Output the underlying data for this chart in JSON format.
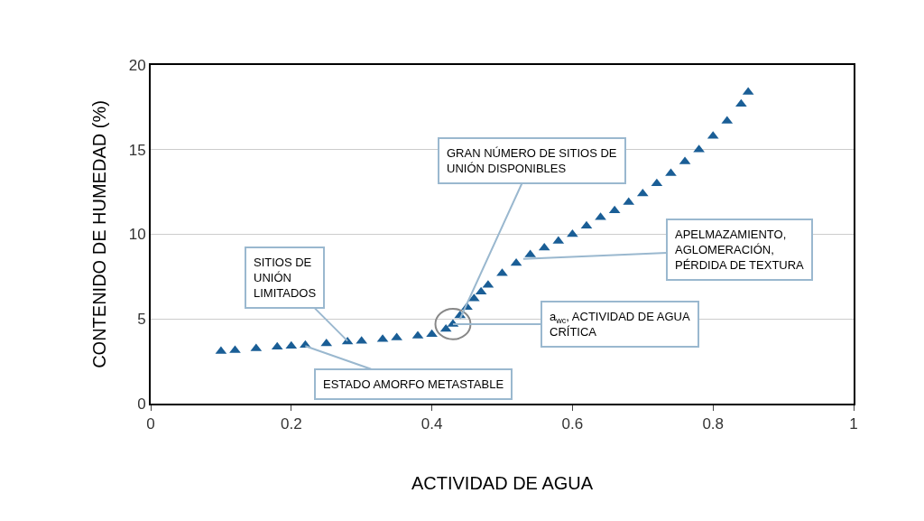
{
  "chart_data": {
    "type": "scatter",
    "xlabel": "ACTIVIDAD DE AGUA",
    "ylabel": "CONTENIDO DE HUMEDAD (%)",
    "x": [
      0.1,
      0.12,
      0.15,
      0.18,
      0.2,
      0.22,
      0.25,
      0.28,
      0.3,
      0.33,
      0.35,
      0.38,
      0.4,
      0.42,
      0.43,
      0.44,
      0.45,
      0.46,
      0.47,
      0.48,
      0.5,
      0.52,
      0.54,
      0.56,
      0.58,
      0.6,
      0.62,
      0.64,
      0.66,
      0.68,
      0.7,
      0.72,
      0.74,
      0.76,
      0.78,
      0.8,
      0.82,
      0.84,
      0.85
    ],
    "series": [
      {
        "color": "#1a5e96",
        "values": [
          3.1,
          3.15,
          3.25,
          3.35,
          3.4,
          3.45,
          3.55,
          3.65,
          3.7,
          3.8,
          3.9,
          4.0,
          4.1,
          4.4,
          4.7,
          5.2,
          5.7,
          6.2,
          6.6,
          7.0,
          7.7,
          8.3,
          8.8,
          9.2,
          9.6,
          10.0,
          10.5,
          11.0,
          11.4,
          11.9,
          12.4,
          13.0,
          13.6,
          14.3,
          15.0,
          15.8,
          16.7,
          17.7,
          18.4
        ]
      }
    ],
    "xlim": [
      0,
      1
    ],
    "xticks": [
      0,
      0.2,
      0.4,
      0.6,
      0.8,
      1
    ],
    "ylim": [
      0,
      20
    ],
    "yticks": [
      0,
      5,
      10,
      15,
      20
    ],
    "grid": "y",
    "marker": "triangle",
    "annotations": [
      {
        "text": "GRAN NÚMERO DE SITIOS DE UNIÓN DISPONIBLES",
        "x": 0.44,
        "y": 5.0
      },
      {
        "text": "SITIOS DE UNIÓN LIMITADOS",
        "x": 0.28,
        "y": 3.7
      },
      {
        "text": "APELMAZAMIENTO, AGLOMERACIÓN, PÉRDIDA DE TEXTURA",
        "x": 0.53,
        "y": 8.55
      },
      {
        "text": "a$_{wc}$, ACTIVIDAD DE AGUA CRÍTICA",
        "x": 0.43,
        "y": 4.7
      },
      {
        "text": "ESTADO AMORFO METASTABLE",
        "x": 0.22,
        "y": 3.4
      }
    ]
  }
}
